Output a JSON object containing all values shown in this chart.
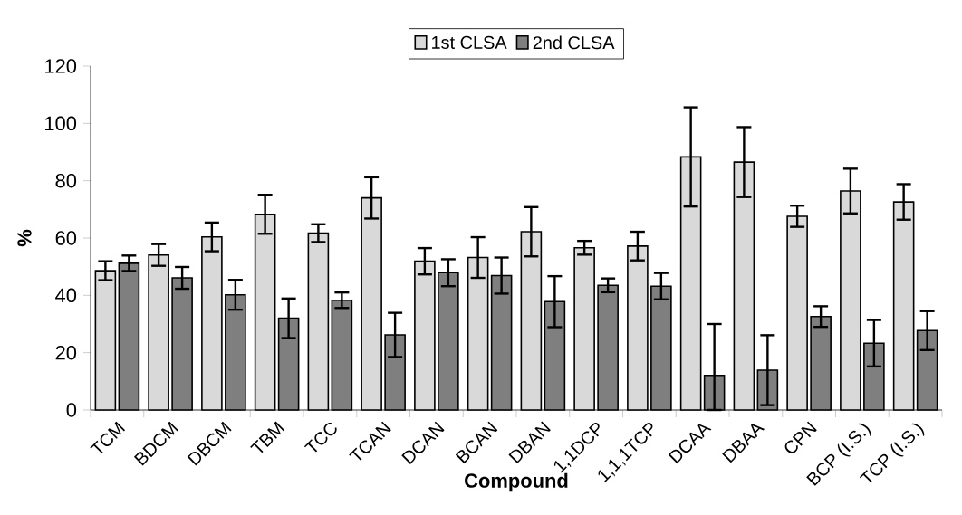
{
  "chart_data": {
    "type": "bar",
    "xlabel": "Compound",
    "ylabel": "%",
    "categories": [
      "TCM",
      "BDCM",
      "DBCM",
      "TBM",
      "TCC",
      "TCAN",
      "DCAN",
      "BCAN",
      "DBAN",
      "1,1DCP",
      "1,1,1TCP",
      "DCAA",
      "DBAA",
      "CPN",
      "BCP (I.S.)",
      "TCP (I.S.)"
    ],
    "series": [
      {
        "name": "1st CLSA",
        "color": "#d9d9d9",
        "values": [
          48.6,
          54.1,
          60.4,
          68.3,
          61.7,
          74.0,
          51.9,
          53.2,
          62.2,
          56.6,
          57.2,
          88.3,
          86.5,
          67.6,
          76.4,
          72.6
        ],
        "errors": [
          3.3,
          3.8,
          5.0,
          6.8,
          3.1,
          7.2,
          4.6,
          7.1,
          8.6,
          2.4,
          5.0,
          17.3,
          12.2,
          3.7,
          7.8,
          6.2
        ]
      },
      {
        "name": "2nd CLSA",
        "color": "#7f7f7f",
        "values": [
          51.2,
          46.1,
          40.2,
          32.0,
          38.3,
          26.2,
          47.9,
          46.9,
          37.8,
          43.5,
          43.2,
          12.1,
          13.9,
          32.6,
          23.3,
          27.7
        ],
        "errors": [
          2.7,
          3.8,
          5.2,
          6.9,
          2.7,
          7.7,
          4.7,
          6.3,
          8.9,
          2.4,
          4.6,
          [
            0,
            30.0
          ],
          12.2,
          3.6,
          8.1,
          6.8
        ]
      }
    ],
    "ylim": [
      0,
      120
    ],
    "yticks": [
      0,
      20,
      40,
      60,
      80,
      100,
      120
    ],
    "grid": false,
    "legend": "top"
  }
}
